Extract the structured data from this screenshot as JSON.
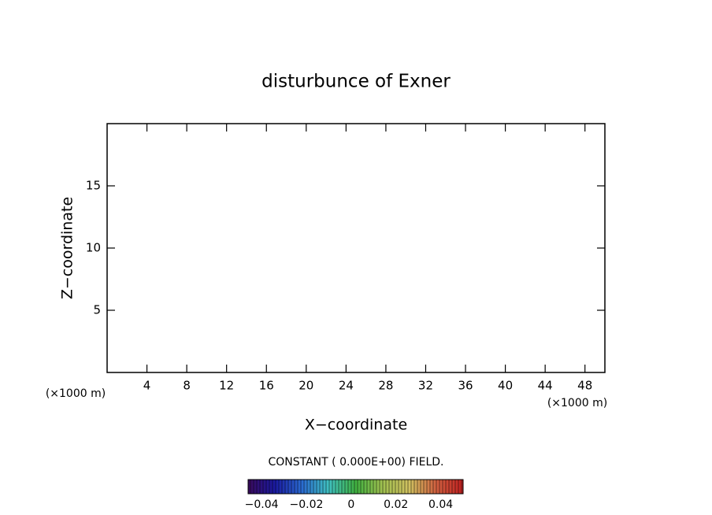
{
  "chart_data": {
    "type": "contour",
    "title": "disturbunce of Exner",
    "x_label": "X−coordinate",
    "y_label": "Z−coordinate",
    "x_unit": "(×1000 m)",
    "y_unit": "(×1000 m)",
    "xlim": [
      0,
      50
    ],
    "xticks": [
      4,
      8,
      12,
      16,
      20,
      24,
      28,
      32,
      36,
      40,
      44,
      48
    ],
    "ylim": [
      0,
      20
    ],
    "yticks": [
      5,
      10,
      15
    ],
    "annotation": "CONSTANT ( 0.000E+00) FIELD.",
    "colorbar": {
      "lim": [
        -0.046,
        0.05
      ],
      "ticks": [
        {
          "value": -0.04,
          "label": "−0.04"
        },
        {
          "value": -0.02,
          "label": "−0.02"
        },
        0,
        0.02,
        0.04
      ],
      "colors": [
        "#3a0a5c",
        "#1a1aa0",
        "#2a6ad0",
        "#40c0c0",
        "#40b040",
        "#a0c050",
        "#d0c060",
        "#d06040",
        "#c02020"
      ]
    }
  }
}
